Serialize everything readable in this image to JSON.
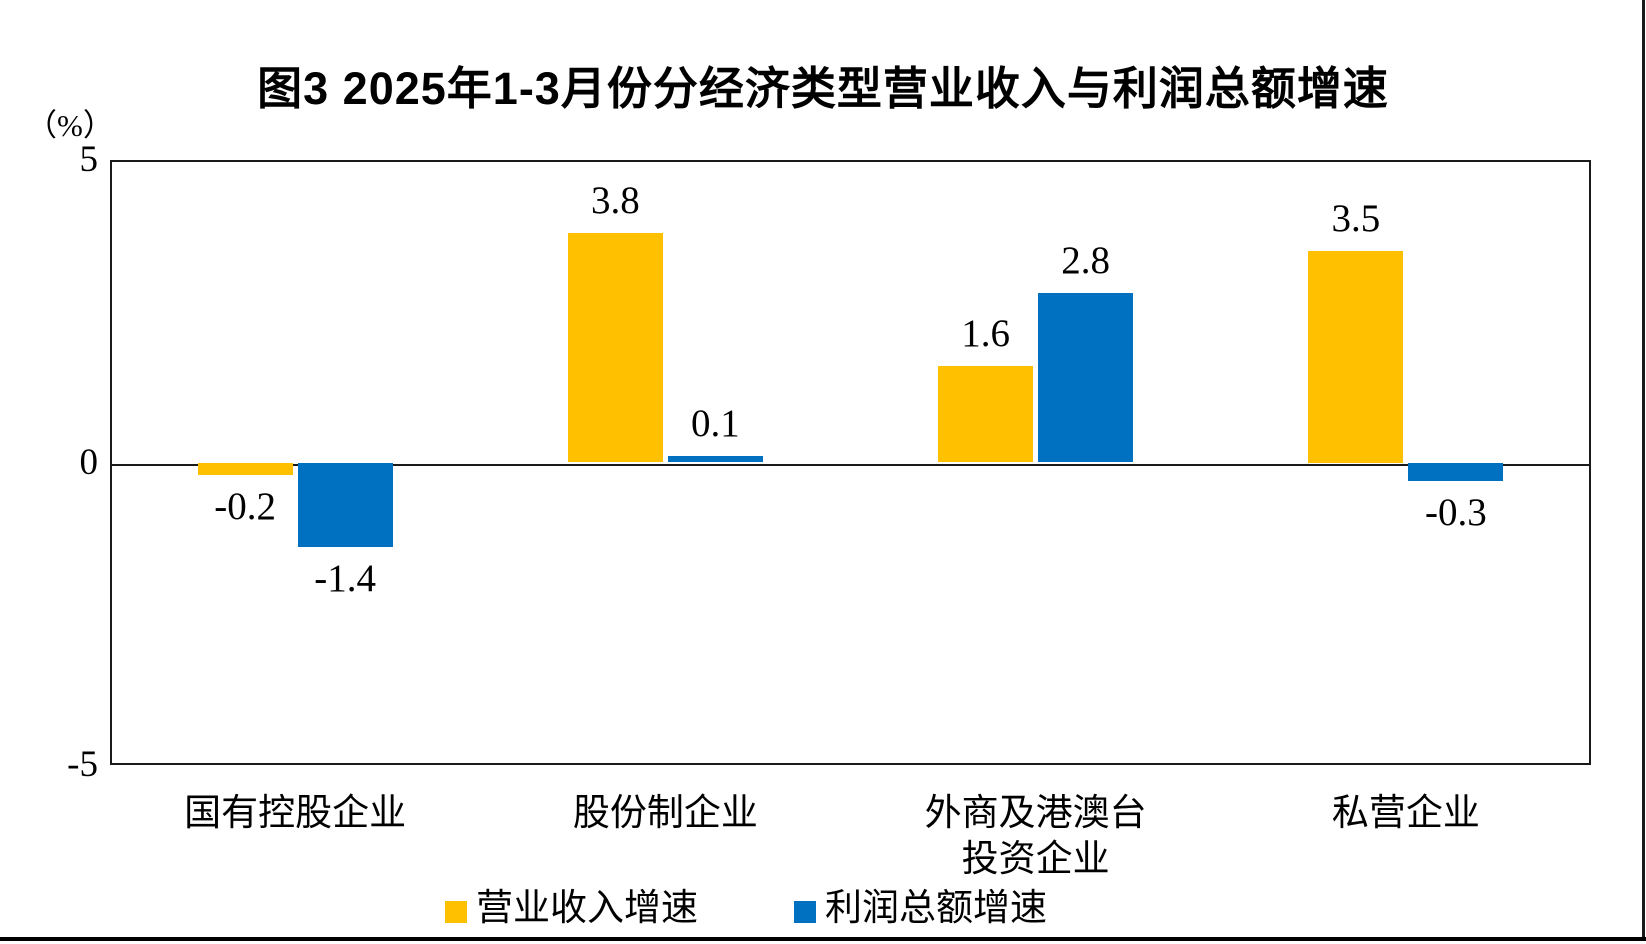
{
  "title": "图3 2025年1-3月份分经济类型营业收入与利润总额增速",
  "y_axis": {
    "unit_label": "（%）",
    "tick_labels": [
      "5",
      "0",
      "-5"
    ]
  },
  "legend": {
    "items": [
      {
        "label": "营业收入增速",
        "color": "#FFC000"
      },
      {
        "label": "利润总额增速",
        "color": "#0070C0"
      }
    ]
  },
  "chart_data": {
    "type": "bar",
    "title": "图3 2025年1-3月份分经济类型营业收入与利润总额增速",
    "categories": [
      "国有控股企业",
      "股份制企业",
      "外商及港澳台\n投资企业",
      "私营企业"
    ],
    "series": [
      {
        "name": "营业收入增速",
        "color": "#FFC000",
        "values": [
          -0.2,
          3.8,
          1.6,
          3.5
        ]
      },
      {
        "name": "利润总额增速",
        "color": "#0070C0",
        "values": [
          -1.4,
          0.1,
          2.8,
          -0.3
        ]
      }
    ],
    "xlabel": "",
    "ylabel": "（%）",
    "ylim": [
      -5,
      5
    ],
    "yticks": [
      5,
      0,
      -5
    ],
    "grid": false,
    "legend_position": "bottom",
    "data_labels": true,
    "axis_color": "#1a1a1a"
  }
}
